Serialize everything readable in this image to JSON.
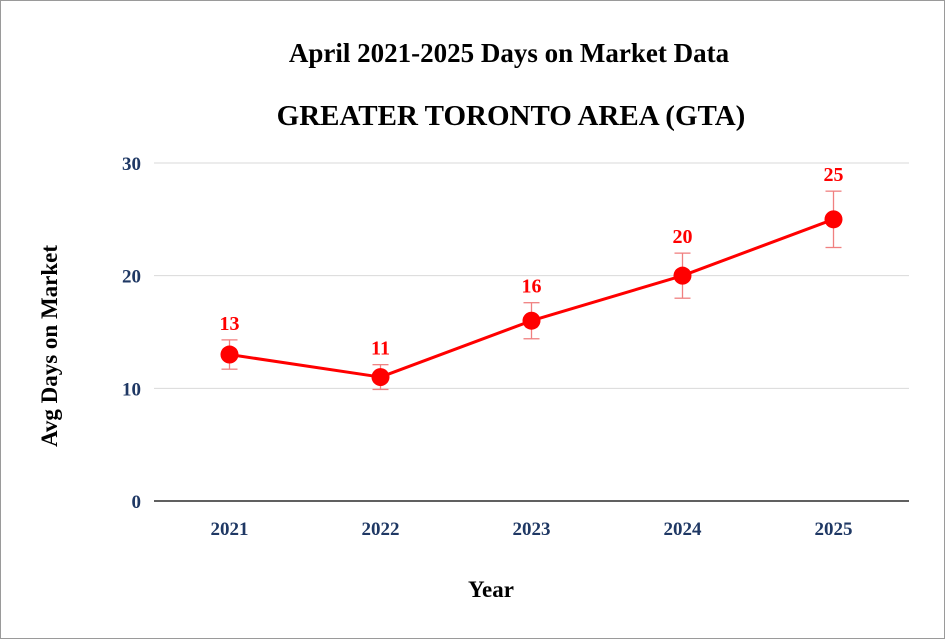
{
  "chart_data": {
    "type": "line",
    "title": "April 2021-2025 Days on Market Data",
    "subtitle": "GREATER TORONTO AREA (GTA)",
    "xlabel": "Year",
    "ylabel": "Avg Days on Market",
    "categories": [
      "2021",
      "2022",
      "2023",
      "2024",
      "2025"
    ],
    "series": [
      {
        "values": [
          13,
          11,
          16,
          20,
          25
        ],
        "error_low": [
          11.7,
          9.9,
          14.4,
          18.0,
          22.5
        ],
        "error_high": [
          14.3,
          12.1,
          17.6,
          22.0,
          27.5
        ]
      }
    ],
    "data_labels": [
      "13",
      "11",
      "16",
      "20",
      "25"
    ],
    "ylim": [
      0,
      30
    ],
    "yticks": [
      "0",
      "10",
      "20",
      "30"
    ],
    "grid": true,
    "legend": "none",
    "colors": {
      "series": "#ff0000",
      "errorbar": "#f08080",
      "text": "#1f3864",
      "grid": "#d9d9d9",
      "axis": "#000000"
    }
  }
}
